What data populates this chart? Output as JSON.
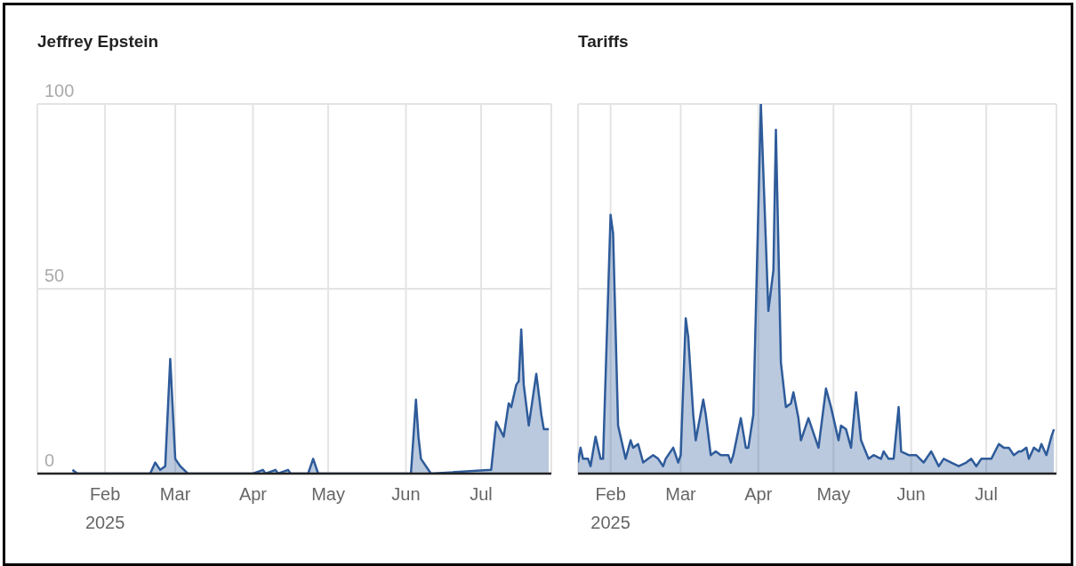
{
  "chart_data": [
    {
      "type": "area",
      "title": "Jeffrey Epstein",
      "color": "#2e5b9a",
      "xlim": [
        "2025-01-05",
        "2025-07-29"
      ],
      "xticks": [
        {
          "value": "2025-02-01",
          "label": "Feb\n2025"
        },
        {
          "value": "2025-03-01",
          "label": "Mar"
        },
        {
          "value": "2025-04-01",
          "label": "Apr"
        },
        {
          "value": "2025-05-01",
          "label": "May"
        },
        {
          "value": "2025-06-01",
          "label": "Jun"
        },
        {
          "value": "2025-07-01",
          "label": "Jul"
        }
      ],
      "ylim": [
        0,
        100
      ],
      "yticks": [
        0,
        50,
        100
      ],
      "grid": true,
      "x": [
        "2025-01-19",
        "2025-01-21",
        "2025-01-23",
        "2025-02-19",
        "2025-02-21",
        "2025-02-23",
        "2025-02-25",
        "2025-02-27",
        "2025-03-01",
        "2025-03-03",
        "2025-03-06",
        "2025-04-01",
        "2025-04-05",
        "2025-04-06",
        "2025-04-10",
        "2025-04-11",
        "2025-04-15",
        "2025-04-16",
        "2025-04-23",
        "2025-04-25",
        "2025-04-27",
        "2025-06-03",
        "2025-06-05",
        "2025-06-06",
        "2025-06-07",
        "2025-06-09",
        "2025-06-11",
        "2025-07-05",
        "2025-07-07",
        "2025-07-10",
        "2025-07-12",
        "2025-07-13",
        "2025-07-15",
        "2025-07-16",
        "2025-07-17",
        "2025-07-18",
        "2025-07-20",
        "2025-07-23",
        "2025-07-25",
        "2025-07-26",
        "2025-07-28"
      ],
      "values": [
        1,
        0,
        0,
        0,
        3,
        1,
        2,
        31,
        4,
        2,
        0,
        0,
        1,
        0,
        1,
        0,
        1,
        0,
        0,
        4,
        0,
        0,
        20,
        10,
        4,
        2,
        0,
        1,
        14,
        10,
        19,
        18,
        24,
        25,
        39,
        24,
        13,
        27,
        16,
        12,
        12
      ]
    },
    {
      "type": "area",
      "title": "Tariffs",
      "color": "#2e5b9a",
      "xlim": [
        "2025-01-19",
        "2025-07-29"
      ],
      "xticks": [
        {
          "value": "2025-02-01",
          "label": "Feb\n2025"
        },
        {
          "value": "2025-03-01",
          "label": "Mar"
        },
        {
          "value": "2025-04-01",
          "label": "Apr"
        },
        {
          "value": "2025-05-01",
          "label": "May"
        },
        {
          "value": "2025-06-01",
          "label": "Jun"
        },
        {
          "value": "2025-07-01",
          "label": "Jul"
        }
      ],
      "ylim": [
        0,
        100
      ],
      "yticks": [
        0,
        50,
        100
      ],
      "grid": true,
      "tick_labels": "x",
      "x": [
        "2025-01-19",
        "2025-01-20",
        "2025-01-21",
        "2025-01-23",
        "2025-01-24",
        "2025-01-26",
        "2025-01-28",
        "2025-01-29",
        "2025-02-01",
        "2025-02-02",
        "2025-02-04",
        "2025-02-06",
        "2025-02-07",
        "2025-02-09",
        "2025-02-10",
        "2025-02-12",
        "2025-02-14",
        "2025-02-16",
        "2025-02-18",
        "2025-02-20",
        "2025-02-22",
        "2025-02-23",
        "2025-02-26",
        "2025-02-28",
        "2025-03-01",
        "2025-03-03",
        "2025-03-04",
        "2025-03-06",
        "2025-03-07",
        "2025-03-10",
        "2025-03-11",
        "2025-03-13",
        "2025-03-15",
        "2025-03-17",
        "2025-03-20",
        "2025-03-21",
        "2025-03-22",
        "2025-03-25",
        "2025-03-27",
        "2025-03-28",
        "2025-03-30",
        "2025-04-02",
        "2025-04-05",
        "2025-04-07",
        "2025-04-08",
        "2025-04-10",
        "2025-04-12",
        "2025-04-14",
        "2025-04-15",
        "2025-04-17",
        "2025-04-18",
        "2025-04-21",
        "2025-04-25",
        "2025-04-28",
        "2025-04-30",
        "2025-05-01",
        "2025-05-03",
        "2025-05-04",
        "2025-05-06",
        "2025-05-08",
        "2025-05-10",
        "2025-05-12",
        "2025-05-15",
        "2025-05-17",
        "2025-05-20",
        "2025-05-21",
        "2025-05-23",
        "2025-05-25",
        "2025-05-27",
        "2025-05-28",
        "2025-05-31",
        "2025-06-03",
        "2025-06-06",
        "2025-06-09",
        "2025-06-12",
        "2025-06-14",
        "2025-06-17",
        "2025-06-20",
        "2025-06-23",
        "2025-06-25",
        "2025-06-27",
        "2025-06-29",
        "2025-07-03",
        "2025-07-06",
        "2025-07-08",
        "2025-07-10",
        "2025-07-12",
        "2025-07-14",
        "2025-07-15",
        "2025-07-17",
        "2025-07-18",
        "2025-07-20",
        "2025-07-22",
        "2025-07-23",
        "2025-07-25",
        "2025-07-27",
        "2025-07-28"
      ],
      "values": [
        3,
        7,
        4,
        4,
        2,
        10,
        4,
        4,
        70,
        65,
        13,
        7,
        4,
        9,
        7,
        8,
        3,
        4,
        5,
        4,
        2,
        4,
        7,
        3,
        5,
        42,
        37,
        16,
        9,
        20,
        16,
        5,
        6,
        5,
        5,
        3,
        5,
        15,
        7,
        7,
        16,
        100,
        44,
        55,
        93,
        30,
        18,
        19,
        22,
        15,
        9,
        15,
        7,
        23,
        18,
        15,
        9,
        13,
        12,
        7,
        22,
        9,
        4,
        5,
        4,
        6,
        4,
        4,
        18,
        6,
        5,
        5,
        3,
        6,
        2,
        4,
        3,
        2,
        3,
        4,
        2,
        4,
        4,
        8,
        7,
        7,
        5,
        6,
        6,
        7,
        4,
        7,
        6,
        8,
        5,
        10,
        12
      ]
    }
  ]
}
